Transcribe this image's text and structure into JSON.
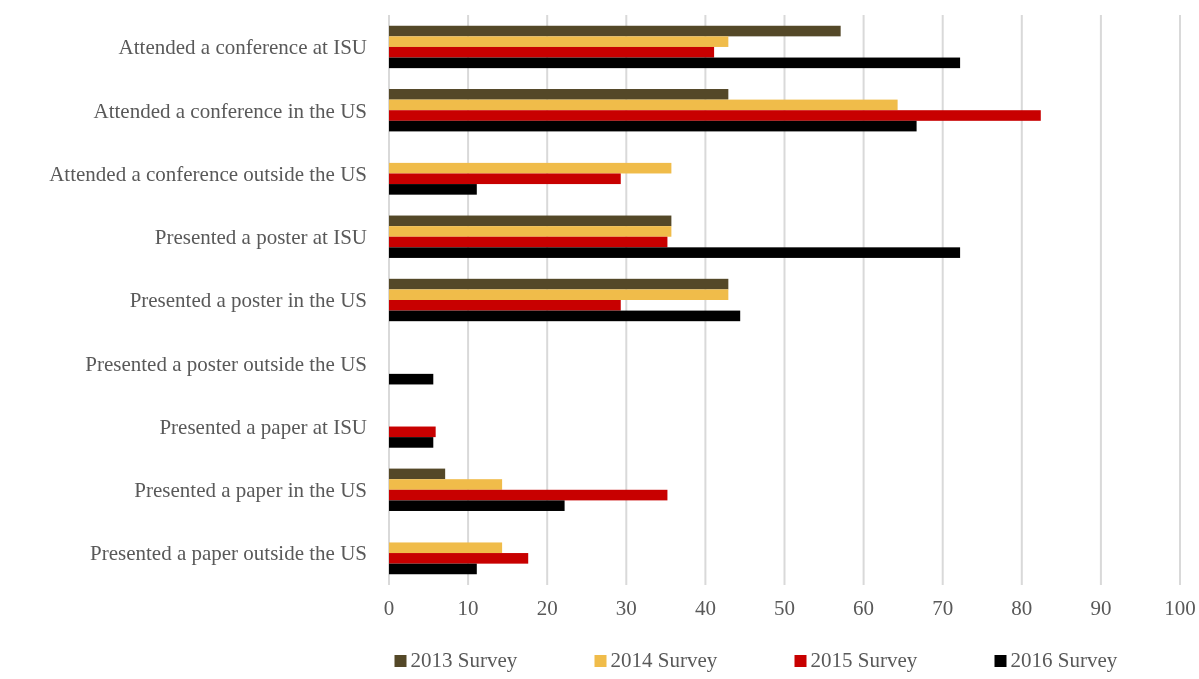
{
  "chart_data": {
    "type": "bar",
    "orientation": "horizontal",
    "categories": [
      "Attended a conference at ISU",
      "Attended a conference in the US",
      "Attended a conference outside the US",
      "Presented a poster at ISU",
      "Presented a poster in the US",
      "Presented a poster outside the US",
      "Presented a paper at ISU",
      "Presented a paper in the US",
      "Presented a paper outside the US"
    ],
    "series": [
      {
        "name": "2013 Survey",
        "color": "#544828",
        "values": [
          57.1,
          42.9,
          null,
          35.7,
          42.9,
          null,
          null,
          7.1,
          null
        ]
      },
      {
        "name": "2014 Survey",
        "color": "#f0bc4a",
        "values": [
          42.9,
          64.3,
          35.7,
          35.7,
          42.9,
          null,
          null,
          14.3,
          14.3
        ]
      },
      {
        "name": "2015 Survey",
        "color": "#c80000",
        "values": [
          41.1,
          82.4,
          29.3,
          35.2,
          29.3,
          null,
          5.9,
          35.2,
          17.6
        ]
      },
      {
        "name": "2016 Survey",
        "color": "#000000",
        "values": [
          72.2,
          66.7,
          11.1,
          72.2,
          44.4,
          5.6,
          5.6,
          22.2,
          11.1
        ]
      }
    ],
    "xlim": [
      0,
      100
    ],
    "xticks": [
      0,
      10,
      20,
      30,
      40,
      50,
      60,
      70,
      80,
      90,
      100
    ],
    "grid": "x",
    "legend": "bottom"
  }
}
